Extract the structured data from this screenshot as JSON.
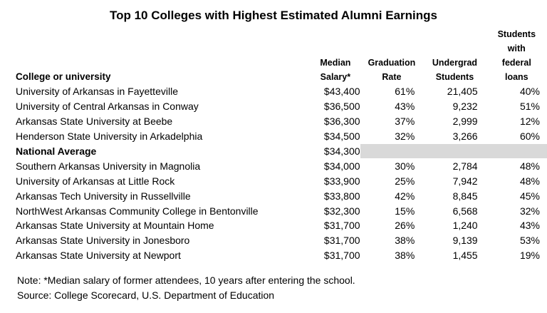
{
  "title": "Top 10 Colleges with Highest Estimated Alumni Earnings",
  "headers": {
    "college": "College or university",
    "salary": [
      "Median",
      "Salary*"
    ],
    "graduation": [
      "Graduation",
      "Rate"
    ],
    "undergrad": [
      "Undergrad",
      "Students"
    ],
    "loans": [
      "Students",
      "with",
      "federal",
      "loans"
    ]
  },
  "rows": [
    {
      "name": "University of Arkansas in Fayetteville",
      "salary": "$43,400",
      "grad": "61%",
      "undergrad": "21,405",
      "loans": "40%"
    },
    {
      "name": "University of Central Arkansas in Conway",
      "salary": "$36,500",
      "grad": "43%",
      "undergrad": "9,232",
      "loans": "51%"
    },
    {
      "name": "Arkansas State University at Beebe",
      "salary": "$36,300",
      "grad": "37%",
      "undergrad": "2,999",
      "loans": "12%"
    },
    {
      "name": "Henderson State University in Arkadelphia",
      "salary": "$34,500",
      "grad": "32%",
      "undergrad": "3,266",
      "loans": "60%"
    },
    {
      "name": "National Average",
      "salary": "$34,300",
      "grad": "",
      "undergrad": "",
      "loans": ""
    },
    {
      "name": "Southern Arkansas University in Magnolia",
      "salary": "$34,000",
      "grad": "30%",
      "undergrad": "2,784",
      "loans": "48%"
    },
    {
      "name": "University of Arkansas at Little Rock",
      "salary": "$33,900",
      "grad": "25%",
      "undergrad": "7,942",
      "loans": "48%"
    },
    {
      "name": "Arkansas Tech University in Russellville",
      "salary": "$33,800",
      "grad": "42%",
      "undergrad": "8,845",
      "loans": "45%"
    },
    {
      "name": "NorthWest Arkansas Community College in Bentonville",
      "salary": "$32,300",
      "grad": "15%",
      "undergrad": "6,568",
      "loans": "32%"
    },
    {
      "name": "Arkansas State University at Mountain Home",
      "salary": "$31,700",
      "grad": "26%",
      "undergrad": "1,240",
      "loans": "43%"
    },
    {
      "name": "Arkansas State University in Jonesboro",
      "salary": "$31,700",
      "grad": "38%",
      "undergrad": "9,139",
      "loans": "53%"
    },
    {
      "name": "Arkansas State University at Newport",
      "salary": "$31,700",
      "grad": "38%",
      "undergrad": "1,455",
      "loans": "19%"
    }
  ],
  "notes": {
    "note": "Note: *Median salary of former attendees, 10 years after entering the school.",
    "source": "Source: College Scorecard, U.S. Department of Education"
  }
}
